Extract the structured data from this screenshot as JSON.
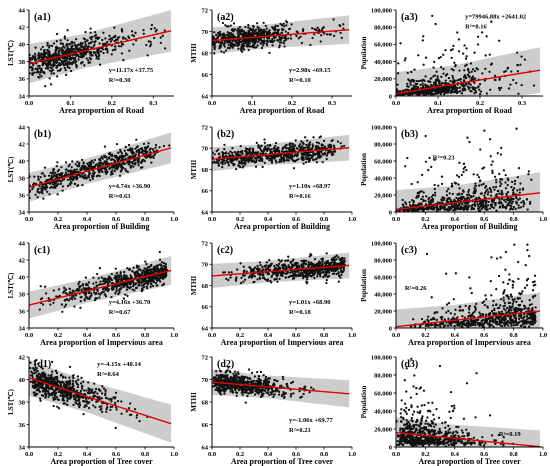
{
  "chart_data": [
    {
      "id": "a1",
      "type": "scatter",
      "panel_label": "(a1)",
      "xlabel": "Area proportion of Road",
      "ylabel": "LST(℃)",
      "xlim": [
        0,
        0.35
      ],
      "ylim": [
        34,
        44
      ],
      "xticks": [
        0,
        0.1,
        0.2,
        0.3
      ],
      "xtick_labels": [
        "0.0",
        "0.1",
        "0.2",
        "0.3"
      ],
      "yticks": [
        34,
        36,
        38,
        40,
        42,
        44
      ],
      "ytick_labels": [
        "34",
        "36",
        "38",
        "40",
        "42",
        "44"
      ],
      "equation": "y=11.17x +37.75",
      "r2": "R²=0.30",
      "eq_pos": "bottom-right",
      "fit": {
        "slope": 11.17,
        "intercept": 37.75
      },
      "band_halfwidth": 2.0,
      "point_count": 600,
      "x_distribution": "right-skewed, dense 0.02–0.15, sparse up to 0.33"
    },
    {
      "id": "a2",
      "type": "scatter",
      "panel_label": "(a2)",
      "xlabel": "Area proportion of Road",
      "ylabel": "MTHI",
      "xlim": [
        0,
        0.35
      ],
      "ylim": [
        64,
        72
      ],
      "xticks": [
        0,
        0.1,
        0.2,
        0.3
      ],
      "xtick_labels": [
        "0.0",
        "0.1",
        "0.2",
        "0.3"
      ],
      "yticks": [
        64,
        66,
        68,
        70,
        72
      ],
      "ytick_labels": [
        "64",
        "66",
        "68",
        "70",
        "72"
      ],
      "equation": "y=2.98x +69.15",
      "r2": "R²=0.10",
      "eq_pos": "bottom-right",
      "fit": {
        "slope": 2.98,
        "intercept": 69.15
      },
      "band_halfwidth": 1.1,
      "point_count": 600,
      "x_distribution": "right-skewed, dense 0.02–0.15, sparse up to 0.33"
    },
    {
      "id": "a3",
      "type": "scatter",
      "panel_label": "(a3)",
      "xlabel": "Area proportion of Road",
      "ylabel": "Population",
      "xlim": [
        0,
        0.35
      ],
      "ylim": [
        0,
        100000
      ],
      "xticks": [
        0,
        0.1,
        0.2,
        0.3
      ],
      "xtick_labels": [
        "0.0",
        "0.1",
        "0.2",
        "0.3"
      ],
      "yticks": [
        0,
        20000,
        40000,
        60000,
        80000,
        100000
      ],
      "ytick_labels": [
        "0",
        "20,000",
        "40,000",
        "60,000",
        "80,000",
        "100,000"
      ],
      "equation": "y=79946.88x +2641.02",
      "r2": "R²=0.16",
      "eq_pos": "top-right",
      "fit": {
        "slope": 79946.88,
        "intercept": 2641.02
      },
      "band_halfwidth": 22000,
      "point_count": 600,
      "x_distribution": "right-skewed, dense 0.02–0.15, sparse up to 0.33"
    },
    {
      "id": "b1",
      "type": "scatter",
      "panel_label": "(b1)",
      "xlabel": "Area proportion of Building",
      "ylabel": "LST(℃)",
      "xlim": [
        0,
        1
      ],
      "ylim": [
        34,
        44
      ],
      "xticks": [
        0,
        0.2,
        0.4,
        0.6,
        0.8,
        1.0
      ],
      "xtick_labels": [
        "0.0",
        "0.2",
        "0.4",
        "0.6",
        "0.8",
        "1.0"
      ],
      "yticks": [
        34,
        36,
        38,
        40,
        42,
        44
      ],
      "ytick_labels": [
        "34",
        "36",
        "38",
        "40",
        "42",
        "44"
      ],
      "equation": "y=4.74x +36.90",
      "r2": "R²=0.63",
      "eq_pos": "bottom-right",
      "fit": {
        "slope": 4.74,
        "intercept": 36.9
      },
      "band_halfwidth": 1.5,
      "point_count": 650,
      "x_distribution": "spread 0.05–0.85"
    },
    {
      "id": "b2",
      "type": "scatter",
      "panel_label": "(b2)",
      "xlabel": "Area proportion of Building",
      "ylabel": "MTHI",
      "xlim": [
        0,
        1
      ],
      "ylim": [
        64,
        72
      ],
      "xticks": [
        0,
        0.2,
        0.4,
        0.6,
        0.8,
        1.0
      ],
      "xtick_labels": [
        "0.0",
        "0.2",
        "0.4",
        "0.6",
        "0.8",
        "1.0"
      ],
      "yticks": [
        64,
        66,
        68,
        70,
        72
      ],
      "ytick_labels": [
        "64",
        "66",
        "68",
        "70",
        "72"
      ],
      "equation": "y=1.10x +68.97",
      "r2": "R²=0.16",
      "eq_pos": "bottom-right",
      "fit": {
        "slope": 1.1,
        "intercept": 68.97
      },
      "band_halfwidth": 1.0,
      "point_count": 650,
      "x_distribution": "spread 0.05–0.85"
    },
    {
      "id": "b3",
      "type": "scatter",
      "panel_label": "(b3)",
      "xlabel": "Area proportion of Building",
      "ylabel": "Population",
      "xlim": [
        0,
        1
      ],
      "ylim": [
        0,
        100000
      ],
      "xticks": [
        0,
        0.2,
        0.4,
        0.6,
        0.8,
        1.0
      ],
      "xtick_labels": [
        "0.0",
        "0.2",
        "0.4",
        "0.6",
        "0.8",
        "1.0"
      ],
      "yticks": [
        0,
        20000,
        40000,
        60000,
        80000,
        100000
      ],
      "ytick_labels": [
        "0",
        "20,000",
        "40,000",
        "60,000",
        "80,000",
        "100,000"
      ],
      "equation": "",
      "r2": "R²=0.23",
      "eq_pos": "top-left",
      "fit": {
        "slope": 20000,
        "intercept": 3000
      },
      "band_halfwidth": 20000,
      "point_count": 650,
      "x_distribution": "spread 0.05–0.85"
    },
    {
      "id": "c1",
      "type": "scatter",
      "panel_label": "(c1)",
      "xlabel": "Area proportion of Impervious area",
      "ylabel": "LST(℃)",
      "xlim": [
        0,
        1
      ],
      "ylim": [
        34,
        44
      ],
      "xticks": [
        0,
        0.2,
        0.4,
        0.6,
        0.8,
        1.0
      ],
      "xtick_labels": [
        "0.0",
        "0.2",
        "0.4",
        "0.6",
        "0.8",
        "1.0"
      ],
      "yticks": [
        34,
        36,
        38,
        40,
        42,
        44
      ],
      "ytick_labels": [
        "34",
        "36",
        "38",
        "40",
        "42",
        "44"
      ],
      "equation": "y=4.16x +36.70",
      "r2": "R²=0.67",
      "eq_pos": "bottom-right",
      "fit": {
        "slope": 4.16,
        "intercept": 36.7
      },
      "band_halfwidth": 1.4,
      "point_count": 650,
      "x_distribution": "spread 0.05–0.95, denser at high values"
    },
    {
      "id": "c2",
      "type": "scatter",
      "panel_label": "(c2)",
      "xlabel": "Area proportion of Impervious area",
      "ylabel": "MTHI",
      "xlim": [
        0,
        1
      ],
      "ylim": [
        64,
        72
      ],
      "xticks": [
        0,
        0.2,
        0.4,
        0.6,
        0.8,
        1.0
      ],
      "xtick_labels": [
        "0.0",
        "0.2",
        "0.4",
        "0.6",
        "0.8",
        "1.0"
      ],
      "yticks": [
        64,
        66,
        68,
        70,
        72
      ],
      "ytick_labels": [
        "64",
        "66",
        "68",
        "70",
        "72"
      ],
      "equation": "y=1.01x +68.90",
      "r2": "R²=0.18",
      "eq_pos": "bottom-right",
      "fit": {
        "slope": 1.01,
        "intercept": 68.9
      },
      "band_halfwidth": 1.0,
      "point_count": 650,
      "x_distribution": "spread 0.05–0.95, denser at high values"
    },
    {
      "id": "c3",
      "type": "scatter",
      "panel_label": "(c3)",
      "xlabel": "Area proportion of Impervious area",
      "ylabel": "Population",
      "xlim": [
        0,
        1
      ],
      "ylim": [
        0,
        100000
      ],
      "xticks": [
        0,
        0.2,
        0.4,
        0.6,
        0.8,
        1.0
      ],
      "xtick_labels": [
        "0.0",
        "0.2",
        "0.4",
        "0.6",
        "0.8",
        "1.0"
      ],
      "yticks": [
        0,
        20000,
        40000,
        60000,
        80000,
        100000
      ],
      "ytick_labels": [
        "0",
        "20,000",
        "40,000",
        "60,000",
        "80,000",
        "100,000"
      ],
      "equation": "",
      "r2": "R²=0.26",
      "eq_pos": "left",
      "fit": {
        "slope": 19000,
        "intercept": 1500
      },
      "band_halfwidth": 18000,
      "point_count": 650,
      "x_distribution": "spread 0.05–0.95, denser at high values"
    },
    {
      "id": "d1",
      "type": "scatter",
      "panel_label": "(d1)",
      "xlabel": "Area proportion of Tree cover",
      "ylabel": "LST(℃)",
      "xlim": [
        0,
        1
      ],
      "ylim": [
        34,
        42
      ],
      "xticks": [
        0,
        0.2,
        0.4,
        0.6,
        0.8,
        1.0
      ],
      "xtick_labels": [
        "0.0",
        "0.2",
        "0.4",
        "0.6",
        "0.8",
        "1.0"
      ],
      "yticks": [
        34,
        36,
        38,
        40,
        42
      ],
      "ytick_labels": [
        "34",
        "36",
        "38",
        "40",
        "42"
      ],
      "equation": "y=-4.15x +40.14",
      "r2": "R²=0.64",
      "eq_pos": "top-right",
      "fit": {
        "slope": -4.15,
        "intercept": 40.14
      },
      "band_halfwidth": 1.4,
      "point_count": 650,
      "x_distribution": "dense 0–0.5, sparse to 0.95"
    },
    {
      "id": "d2",
      "type": "scatter",
      "panel_label": "(d2)",
      "xlabel": "Area proportion of Tree cover",
      "ylabel": "MTHI",
      "xlim": [
        0,
        1
      ],
      "ylim": [
        64,
        72
      ],
      "xticks": [
        0,
        0.2,
        0.4,
        0.6,
        0.8,
        1.0
      ],
      "xtick_labels": [
        "0.0",
        "0.2",
        "0.4",
        "0.6",
        "0.8",
        "1.0"
      ],
      "yticks": [
        64,
        66,
        68,
        70,
        72
      ],
      "ytick_labels": [
        "64",
        "66",
        "68",
        "70",
        "72"
      ],
      "equation": "y=-1.06x +69.77",
      "r2": "R²=0.21",
      "eq_pos": "bottom-right",
      "fit": {
        "slope": -1.06,
        "intercept": 69.77
      },
      "band_halfwidth": 1.0,
      "point_count": 650,
      "x_distribution": "dense 0–0.5, sparse to 0.95"
    },
    {
      "id": "d3",
      "type": "scatter",
      "panel_label": "(d3)",
      "xlabel": "Area proportion of Tree cover",
      "ylabel": "Population",
      "xlim": [
        0,
        1
      ],
      "ylim": [
        0,
        100000
      ],
      "xticks": [
        0,
        0.2,
        0.4,
        0.6,
        0.8,
        1.0
      ],
      "xtick_labels": [
        "0.0",
        "0.2",
        "0.4",
        "0.6",
        "0.8",
        "1.0"
      ],
      "yticks": [
        0,
        20000,
        40000,
        60000,
        80000,
        100000
      ],
      "ytick_labels": [
        "0",
        "20,000",
        "40,000",
        "60,000",
        "80,000",
        "100,000"
      ],
      "equation": "",
      "r2": "R²=0.19",
      "eq_pos": "bottom-right",
      "fit": {
        "slope": -16000,
        "intercept": 16000
      },
      "band_halfwidth": 15000,
      "point_count": 650,
      "x_distribution": "dense 0–0.5, sparse to 0.95"
    }
  ],
  "colors": {
    "point": "#111111",
    "fit_line": "#e00000",
    "band": "#c8c8c8",
    "axis": "#000000"
  }
}
